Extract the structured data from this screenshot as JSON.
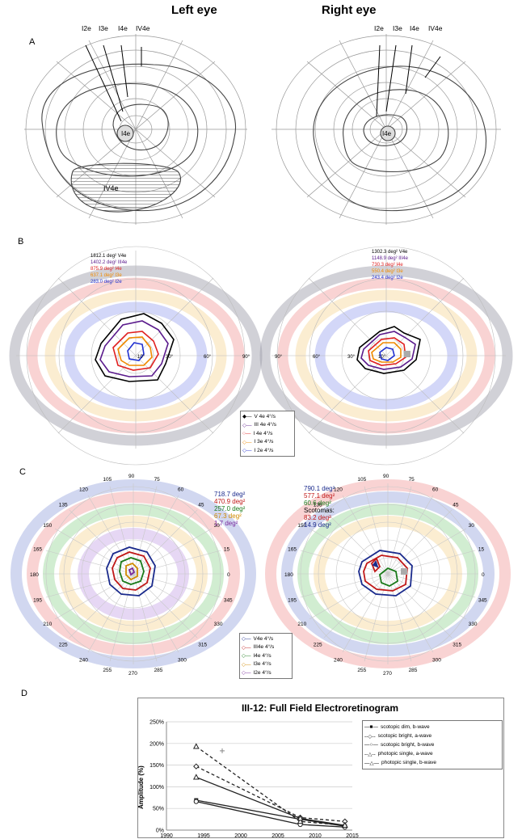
{
  "figure": {
    "left_eye_title": "Left eye",
    "right_eye_title": "Right eye",
    "panel_A": "A",
    "panel_B": "B",
    "panel_C": "C",
    "panel_D": "D"
  },
  "panel_A": {
    "left_labels": [
      "I2e",
      "I3e",
      "I4e",
      "IV4e"
    ],
    "right_labels": [
      "I2e",
      "I3e",
      "I4e",
      "IV4e"
    ],
    "left_inner_label": "I4e",
    "left_scotoma_label": "IV4e",
    "right_inner_label": "I4e"
  },
  "panel_B": {
    "left_areas": [
      {
        "text": "1812.1 deg² V4e",
        "color": "#000000"
      },
      {
        "text": "1402.2 deg² III4e",
        "color": "#5a1a8c"
      },
      {
        "text": "875.9 deg² I4e",
        "color": "#e02020"
      },
      {
        "text": "637.1 deg² I3e",
        "color": "#f08a00"
      },
      {
        "text": "283.0 deg² I2e",
        "color": "#2030d0"
      }
    ],
    "right_areas": [
      {
        "text": "1302.3 deg² V4e",
        "color": "#000000"
      },
      {
        "text": "1148.9 deg² III4e",
        "color": "#5a1a8c"
      },
      {
        "text": "730.3 deg² I4e",
        "color": "#e02020"
      },
      {
        "text": "550.4 deg² I3e",
        "color": "#f08a00"
      },
      {
        "text": "243.4 deg² I2e",
        "color": "#2030d0"
      }
    ],
    "axis_labels_left": [
      "10°",
      "30°",
      "60°",
      "90°"
    ],
    "axis_labels_right": [
      "90°",
      "60°",
      "30°",
      "10°"
    ],
    "legend": [
      "V 4e  4°/s",
      "III 4e  4°/s",
      "I 4e  4°/s",
      "I 3e  4°/s",
      "I 2e  4°/s"
    ]
  },
  "panel_C": {
    "left_areas": [
      {
        "text": "718.7 deg²",
        "color": "#1a2a8c"
      },
      {
        "text": "470.9 deg²",
        "color": "#c01818"
      },
      {
        "text": "257.0 deg²",
        "color": "#1a7a1a"
      },
      {
        "text": "67.3 deg²",
        "color": "#d08a00"
      },
      {
        "text": "1.7 deg²",
        "color": "#7a2a9c"
      }
    ],
    "right_areas": [
      {
        "text": "790.1 deg²",
        "color": "#1a2a8c"
      },
      {
        "text": "577.1 deg²",
        "color": "#c01818"
      },
      {
        "text": "60.6 deg²",
        "color": "#1a7a1a"
      },
      {
        "text": "Scotomas:",
        "color": "#000000"
      },
      {
        "text": "83.2 deg²",
        "color": "#c01818"
      },
      {
        "text": "14.9 deg²",
        "color": "#1a2a8c"
      }
    ],
    "angles": [
      "120",
      "105",
      "90",
      "75",
      "60",
      "45",
      "30",
      "15",
      "0",
      "345",
      "330",
      "315",
      "300",
      "285",
      "270",
      "255",
      "240",
      "225",
      "210",
      "195",
      "180",
      "165",
      "150",
      "135"
    ],
    "legend": [
      "V4e  4°/s",
      "III4e  4°/s",
      "I4e  4°/s",
      "I3e  4°/s",
      "I2e  4°/s"
    ]
  },
  "chart_data": {
    "type": "line",
    "title": "III-12: Full Field Electroretinogram",
    "xlabel": "",
    "ylabel": "Amplitude (%)",
    "xlim": [
      1990,
      2015
    ],
    "ylim": [
      0,
      250
    ],
    "x_ticks": [
      "1990",
      "1995",
      "2000",
      "2005",
      "2010",
      "2015"
    ],
    "y_ticks": [
      "0%",
      "50%",
      "100%",
      "150%",
      "200%",
      "250%"
    ],
    "legend_position": "top-right",
    "series": [
      {
        "name": "scotopic dim,  b-wave",
        "x": [
          1994,
          2008,
          2014
        ],
        "y": [
          69,
          25,
          9
        ],
        "marker": "square-filled",
        "dash": false
      },
      {
        "name": "scotopic bright, a-wave",
        "x": [
          1994,
          2008,
          2014
        ],
        "y": [
          147,
          29,
          20
        ],
        "marker": "diamond",
        "dash": true
      },
      {
        "name": "scotopic bright, b-wave",
        "x": [
          1994,
          2008,
          2014
        ],
        "y": [
          66,
          13,
          7
        ],
        "marker": "circle",
        "dash": false
      },
      {
        "name": "photopic single, a-wave",
        "x": [
          1994,
          2008,
          2014
        ],
        "y": [
          193,
          20,
          11
        ],
        "marker": "triangle",
        "dash": true
      },
      {
        "name": "photopic single, b-wave",
        "x": [
          1994,
          2008,
          2014
        ],
        "y": [
          122,
          27,
          11
        ],
        "marker": "triangle",
        "dash": false
      }
    ],
    "extra_points": [
      {
        "x": 1997.5,
        "y": 183,
        "marker": "plus"
      }
    ]
  }
}
